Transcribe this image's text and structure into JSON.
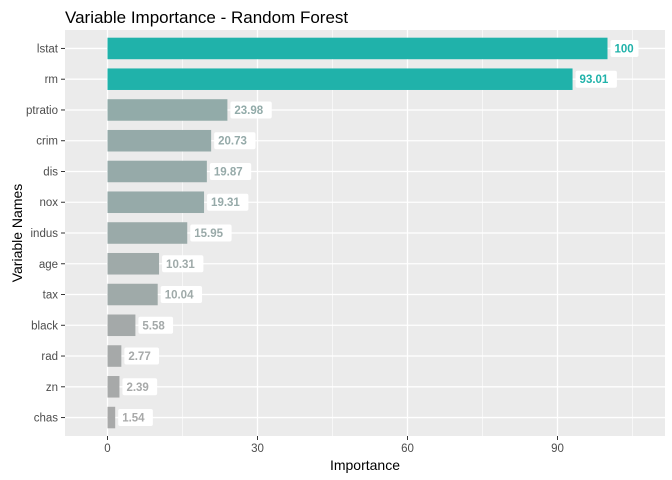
{
  "chart_data": {
    "type": "bar",
    "orientation": "horizontal",
    "title": "Variable Importance - Random Forest",
    "xlabel": "Importance",
    "ylabel": "Variable Names",
    "xlim": [
      -8.5,
      111.5
    ],
    "xticks": [
      0,
      30,
      60,
      90
    ],
    "grid": true,
    "legend": "none",
    "categories": [
      "lstat",
      "rm",
      "ptratio",
      "crim",
      "dis",
      "nox",
      "indus",
      "age",
      "tax",
      "black",
      "rad",
      "zn",
      "chas"
    ],
    "values": [
      100,
      93.01,
      23.98,
      20.73,
      19.87,
      19.31,
      15.95,
      10.31,
      10.04,
      5.58,
      2.77,
      2.39,
      1.54
    ],
    "labels": [
      "100",
      "93.01",
      "23.98",
      "20.73",
      "19.87",
      "19.31",
      "15.95",
      "10.31",
      "10.04",
      "5.58",
      "2.77",
      "2.39",
      "1.54"
    ],
    "colors": {
      "highlight": "#20b2aa",
      "base": "#a9a9a9",
      "panel_background": "#ebebeb",
      "grid_line": "#ffffff",
      "label_background": "#ffffff"
    }
  }
}
